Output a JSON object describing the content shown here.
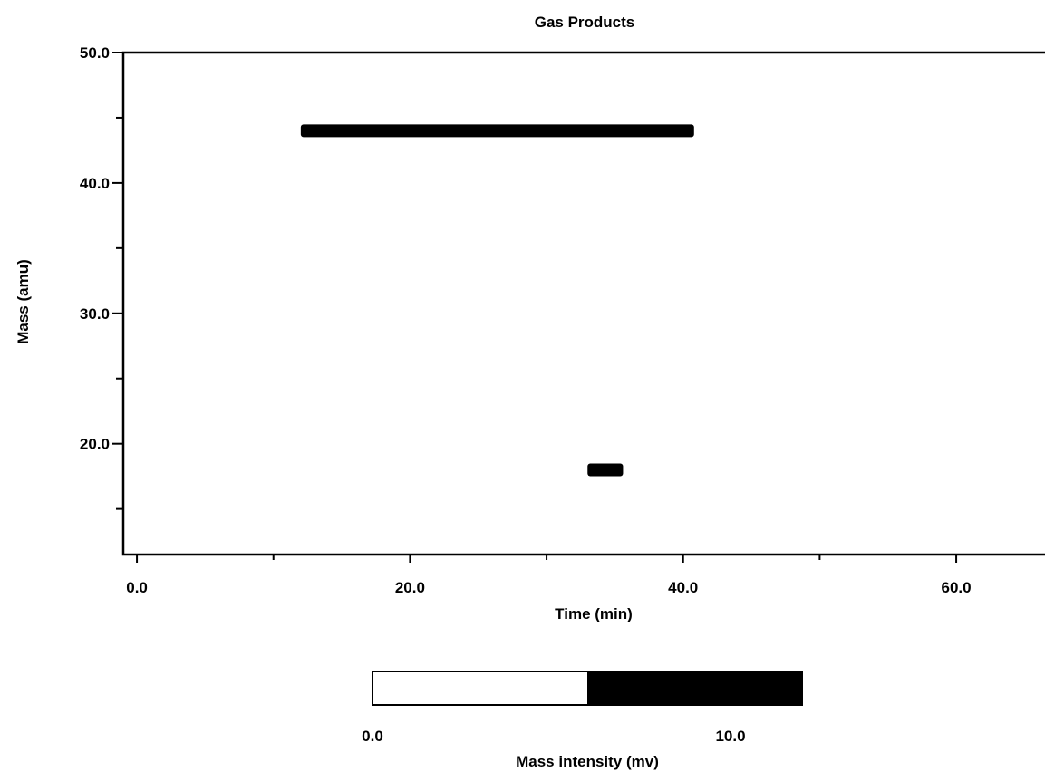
{
  "chart_data": {
    "type": "heatmap",
    "title": "Gas Products",
    "xlabel": "Time (min)",
    "ylabel": "Mass (amu)",
    "xlim": [
      -1.0,
      66.5
    ],
    "ylim": [
      11.5,
      50.0
    ],
    "x_ticks": [
      {
        "value": 0.0,
        "label": "0.0"
      },
      {
        "value": 20.0,
        "label": "20.0"
      },
      {
        "value": 40.0,
        "label": "40.0"
      },
      {
        "value": 60.0,
        "label": "60.0"
      }
    ],
    "x_minor_ticks": [
      10.0,
      30.0,
      50.0
    ],
    "y_ticks": [
      {
        "value": 20.0,
        "label": "20.0"
      },
      {
        "value": 30.0,
        "label": "30.0"
      },
      {
        "value": 40.0,
        "label": "40.0"
      },
      {
        "value": 50.0,
        "label": "50.0"
      }
    ],
    "y_minor_ticks": [
      15.0,
      25.0,
      35.0,
      45.0
    ],
    "grid": false,
    "features": [
      {
        "mass": 44.0,
        "time_start": 12.0,
        "time_end": 40.8,
        "intensity": 10.0
      },
      {
        "mass": 18.0,
        "time_start": 33.0,
        "time_end": 35.6,
        "intensity": 10.0
      }
    ],
    "colorbar": {
      "label": "Mass  intensity  (mv)",
      "min": 0.0,
      "max": 12.0,
      "threshold": 6.0,
      "ticks": [
        {
          "value": 0.0,
          "label": "0.0"
        },
        {
          "value": 10.0,
          "label": "10.0"
        }
      ],
      "low_color": "#ffffff",
      "high_color": "#000000"
    }
  }
}
